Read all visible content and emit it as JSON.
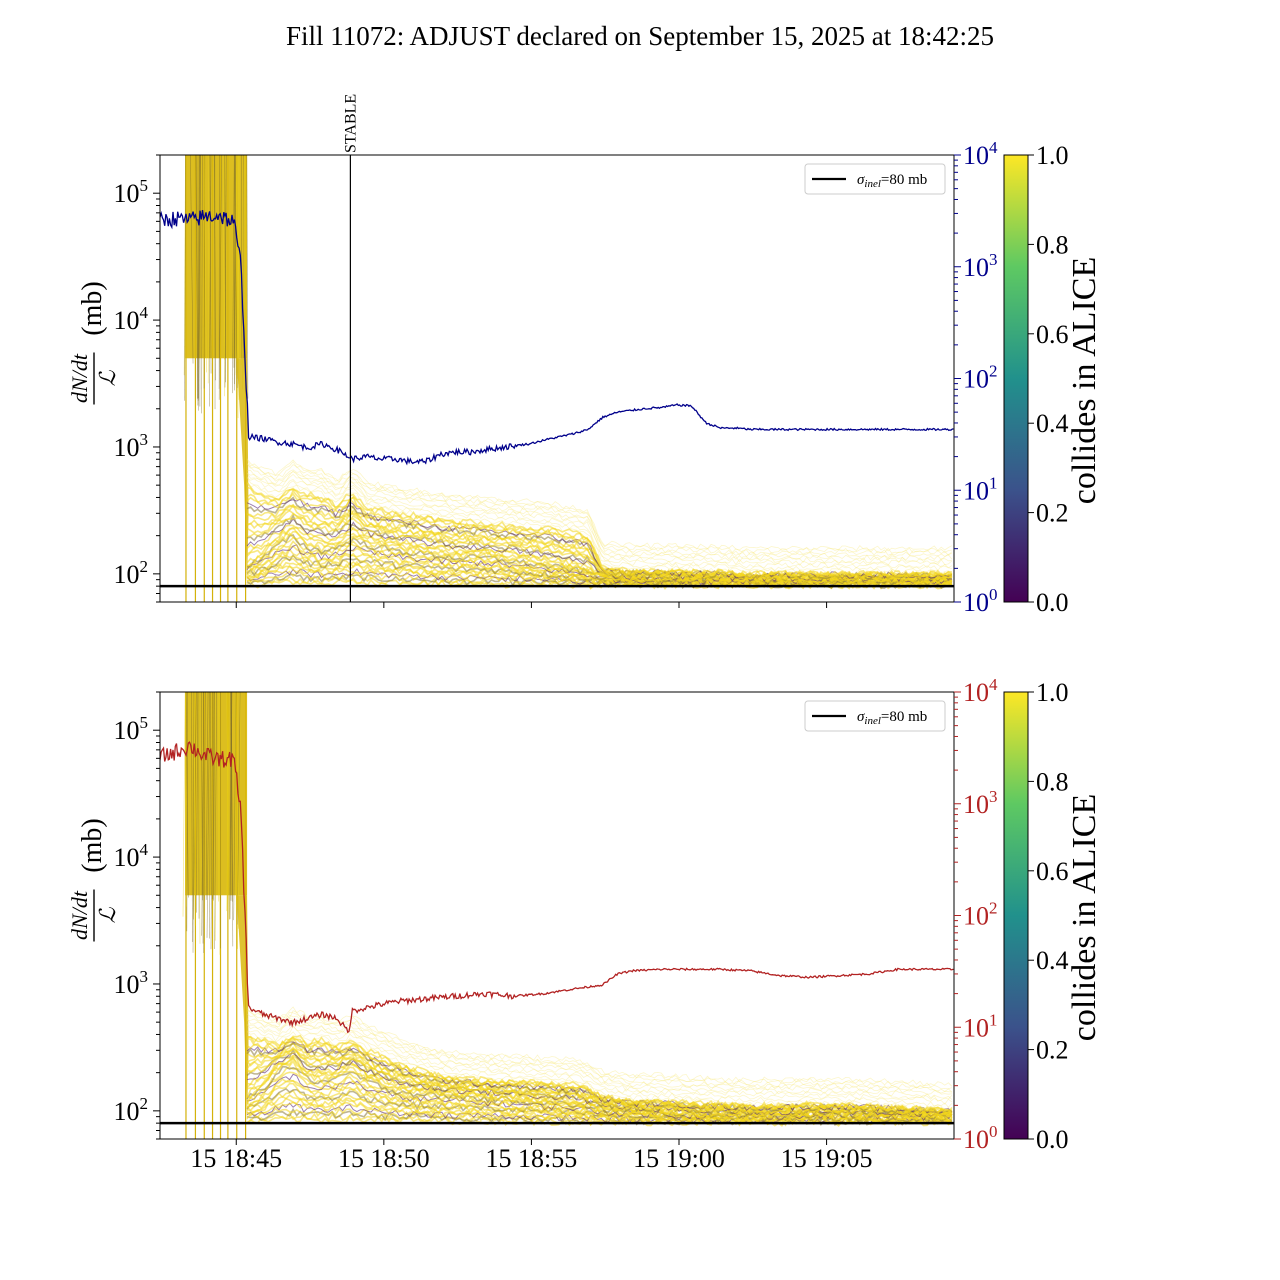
{
  "figure": {
    "title": "Fill 11072: ADJUST declared on September 15, 2025 at 18:42:25"
  },
  "colorbar": {
    "label": "collides in ALICE",
    "ticks": [
      "0.0",
      "0.2",
      "0.4",
      "0.6",
      "0.8",
      "1.0"
    ],
    "colormap": [
      "#440154",
      "#3b528b",
      "#21918c",
      "#5ec962",
      "#fde725"
    ]
  },
  "chart_data": [
    {
      "type": "line",
      "panel": "top",
      "title": "",
      "ylabel": "(mb)",
      "ylabel_fraction": {
        "numerator": "dN/dt",
        "denominator": "ℒ"
      },
      "y_scale": "log",
      "ylim": [
        60,
        200000
      ],
      "y_ticks": [
        "10",
        "10",
        "10",
        "10"
      ],
      "y_tick_exponents": [
        "2",
        "3",
        "4",
        "5"
      ],
      "xlim": [
        "15 18:42:25",
        "15 19:09:20"
      ],
      "x_tick_labels": [],
      "x_tick_times": [
        "15 18:45",
        "15 18:50",
        "15 18:55",
        "15 19:00",
        "15 19:05"
      ],
      "secondary_axis": {
        "scale": "log",
        "ylim": [
          1,
          10000
        ],
        "ticks": [
          "10",
          "10",
          "10",
          "10",
          "10"
        ],
        "tick_exponents": [
          "0",
          "1",
          "2",
          "3",
          "4"
        ],
        "color": "#00008b"
      },
      "legend": {
        "placement": "top-right",
        "entries": [
          "σ_inel=80 mb"
        ],
        "label_main": "σ",
        "label_sub": "inel",
        "label_rest": "=80 mb"
      },
      "annotations": [
        {
          "text": "STABLE",
          "x": "15 18:48:52"
        }
      ],
      "reference_line": {
        "value": 80,
        "color": "#000000"
      },
      "secondary_series": {
        "name": "",
        "x_minutes_after_start": [
          0.0,
          0.5,
          1.0,
          1.5,
          2.0,
          2.5,
          2.75,
          3.0,
          3.5,
          4.0,
          4.5,
          5.0,
          5.5,
          6.0,
          6.4,
          6.5,
          7.0,
          7.5,
          8.0,
          8.5,
          9.0,
          9.5,
          10.0,
          10.5,
          11.0,
          11.5,
          12.0,
          12.5,
          13.0,
          13.5,
          14.0,
          14.5,
          15.0,
          15.5,
          16.0,
          16.5,
          17.0,
          17.5,
          18.0,
          18.5,
          19.0,
          19.5,
          20.0,
          21.0,
          22.0,
          23.0,
          24.0,
          25.0,
          26.9
        ],
        "values": [
          2600,
          2700,
          2600,
          2800,
          2900,
          2500,
          1000,
          30,
          29,
          27,
          26,
          24,
          26,
          23,
          20,
          19,
          20,
          19,
          19,
          18,
          18,
          21,
          22,
          22,
          23,
          24,
          25,
          26,
          28,
          30,
          32,
          35,
          45,
          50,
          52,
          54,
          55,
          58,
          57,
          40,
          36,
          36,
          35,
          35,
          35,
          35,
          35,
          35,
          35
        ]
      },
      "band_series": {
        "name": "",
        "x_minutes_after_start": [
          2.95,
          3.5,
          4.0,
          4.5,
          5.0,
          5.5,
          6.0,
          6.5,
          7.0,
          8.0,
          9.0,
          10.0,
          11.0,
          12.0,
          13.0,
          14.0,
          14.5,
          15.0,
          16.0,
          17.0,
          18.0,
          19.0,
          20.0,
          22.0,
          24.0,
          26.9
        ],
        "upper": [
          500,
          420,
          390,
          480,
          420,
          410,
          350,
          430,
          330,
          300,
          280,
          260,
          250,
          240,
          230,
          210,
          200,
          110,
          105,
          105,
          104,
          102,
          100,
          100,
          100,
          100
        ],
        "median": [
          120,
          140,
          180,
          210,
          170,
          160,
          170,
          200,
          180,
          160,
          150,
          140,
          140,
          130,
          120,
          110,
          105,
          95,
          92,
          92,
          91,
          90,
          90,
          90,
          90,
          90
        ],
        "lower": [
          82,
          83,
          85,
          86,
          85,
          85,
          85,
          86,
          85,
          84,
          84,
          83,
          83,
          82,
          82,
          82,
          81,
          81,
          81,
          81,
          81,
          81,
          81,
          81,
          81,
          81
        ]
      }
    },
    {
      "type": "line",
      "panel": "bottom",
      "title": "",
      "ylabel": "(mb)",
      "ylabel_fraction": {
        "numerator": "dN/dt",
        "denominator": "ℒ"
      },
      "y_scale": "log",
      "ylim": [
        60,
        200000
      ],
      "y_ticks": [
        "10",
        "10",
        "10",
        "10"
      ],
      "y_tick_exponents": [
        "2",
        "3",
        "4",
        "5"
      ],
      "xlim": [
        "15 18:42:25",
        "15 19:09:20"
      ],
      "x_tick_labels": [
        "15 18:45",
        "15 18:50",
        "15 18:55",
        "15 19:00",
        "15 19:05"
      ],
      "x_tick_times": [
        "15 18:45",
        "15 18:50",
        "15 18:55",
        "15 19:00",
        "15 19:05"
      ],
      "secondary_axis": {
        "scale": "log",
        "ylim": [
          1,
          10000
        ],
        "ticks": [
          "10",
          "10",
          "10",
          "10",
          "10"
        ],
        "tick_exponents": [
          "0",
          "1",
          "2",
          "3",
          "4"
        ],
        "color": "#b22222"
      },
      "legend": {
        "placement": "top-right",
        "entries": [
          "σ_inel=80 mb"
        ],
        "label_main": "σ",
        "label_sub": "inel",
        "label_rest": "=80 mb"
      },
      "annotations": [],
      "reference_line": {
        "value": 80,
        "color": "#000000"
      },
      "secondary_series": {
        "name": "",
        "x_minutes_after_start": [
          0.0,
          0.5,
          1.0,
          1.5,
          2.0,
          2.5,
          2.75,
          3.0,
          3.5,
          4.0,
          4.5,
          5.0,
          5.5,
          6.0,
          6.4,
          6.5,
          7.0,
          7.5,
          8.0,
          9.0,
          10.0,
          11.0,
          12.0,
          13.0,
          14.0,
          15.0,
          15.5,
          16.0,
          17.0,
          18.0,
          19.0,
          20.0,
          21.0,
          22.0,
          23.0,
          24.0,
          25.0,
          26.9
        ],
        "values": [
          2600,
          2900,
          3300,
          2700,
          2500,
          2500,
          800,
          15,
          13,
          12,
          11,
          12,
          13,
          12,
          9,
          14,
          15,
          16,
          17,
          18,
          19,
          20,
          19,
          20,
          22,
          24,
          30,
          32,
          33,
          33,
          33,
          32,
          29,
          28,
          29,
          30,
          33,
          33
        ]
      },
      "band_series": {
        "name": "",
        "x_minutes_after_start": [
          2.95,
          3.5,
          4.0,
          4.5,
          5.0,
          5.5,
          6.0,
          6.5,
          7.0,
          8.0,
          9.0,
          10.0,
          11.0,
          12.0,
          13.0,
          14.0,
          14.5,
          15.0,
          16.0,
          17.0,
          18.0,
          19.0,
          20.0,
          22.0,
          24.0,
          26.9
        ],
        "upper": [
          400,
          360,
          330,
          400,
          350,
          360,
          320,
          350,
          300,
          240,
          200,
          180,
          175,
          170,
          165,
          160,
          150,
          130,
          120,
          120,
          115,
          112,
          110,
          112,
          110,
          100
        ],
        "median": [
          130,
          160,
          220,
          250,
          190,
          180,
          190,
          220,
          180,
          150,
          140,
          135,
          130,
          125,
          120,
          115,
          110,
          105,
          100,
          98,
          96,
          95,
          94,
          95,
          94,
          92
        ],
        "lower": [
          82,
          83,
          85,
          86,
          85,
          85,
          85,
          86,
          85,
          84,
          84,
          83,
          83,
          82,
          82,
          82,
          81,
          81,
          81,
          81,
          81,
          81,
          81,
          81,
          81,
          81
        ]
      }
    }
  ]
}
